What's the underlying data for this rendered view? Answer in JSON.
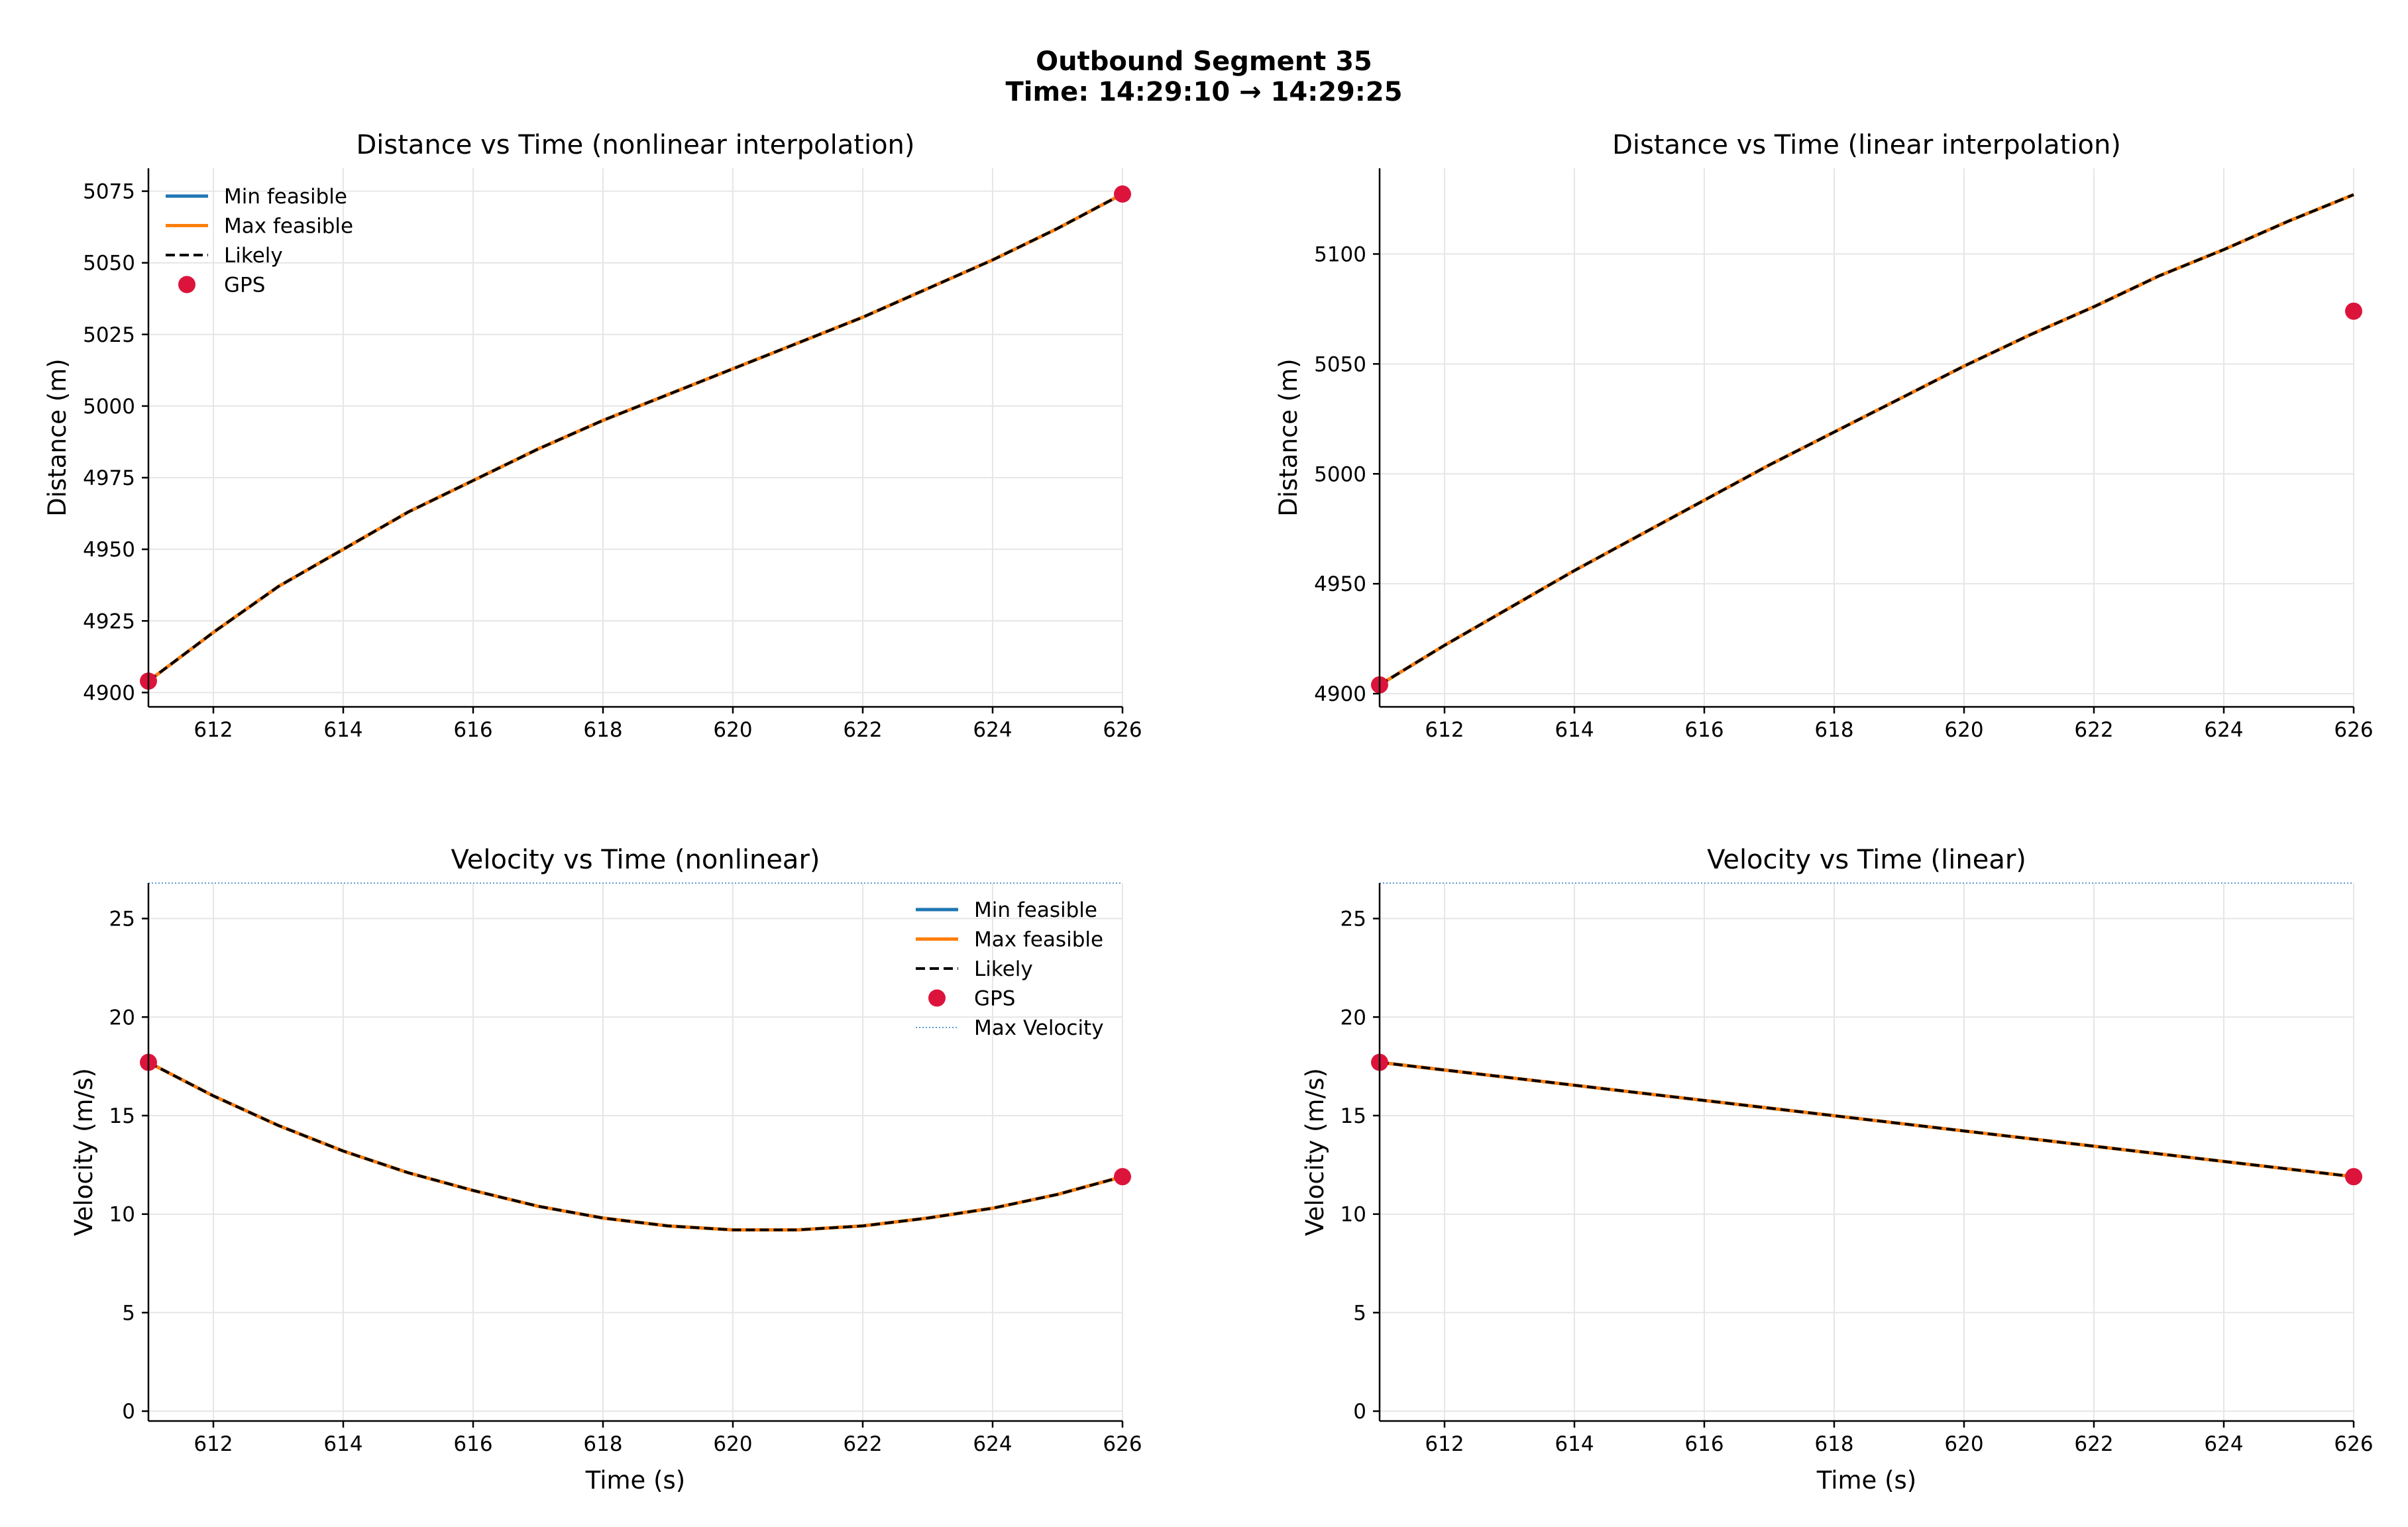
{
  "figure": {
    "title_line1": "Outbound Segment 35",
    "title_line2": "Time: 14:29:10 → 14:29:25"
  },
  "colors": {
    "min_feasible": "#1f77b4",
    "max_feasible": "#ff7f0e",
    "likely": "#000000",
    "gps": "#dc143c",
    "max_velocity": "#5b9bd5"
  },
  "chart_data": [
    {
      "id": "dist-nonlinear",
      "type": "line",
      "title": "Distance vs Time (nonlinear interpolation)",
      "xlabel": "",
      "ylabel": "Distance (m)",
      "xlim": [
        611,
        626
      ],
      "ylim": [
        4895,
        5083
      ],
      "xticks": [
        612,
        614,
        616,
        618,
        620,
        622,
        624,
        626
      ],
      "yticks": [
        4900,
        4925,
        4950,
        4975,
        5000,
        5025,
        5050,
        5075
      ],
      "grid": true,
      "legend": "upper-left",
      "x": [
        611,
        612,
        613,
        614,
        615,
        616,
        617,
        618,
        619,
        620,
        621,
        622,
        623,
        624,
        625,
        626
      ],
      "series": [
        {
          "name": "Min feasible",
          "style": "solid",
          "values": [
            4904,
            4921,
            4937,
            4950,
            4963,
            4974,
            4985,
            4995,
            5004,
            5013,
            5022,
            5031,
            5041,
            5051,
            5062,
            5074
          ]
        },
        {
          "name": "Max feasible",
          "style": "solid",
          "values": [
            4904,
            4921,
            4937,
            4950,
            4963,
            4974,
            4985,
            4995,
            5004,
            5013,
            5022,
            5031,
            5041,
            5051,
            5062,
            5074
          ]
        },
        {
          "name": "Likely",
          "style": "dashed",
          "values": [
            4904,
            4921,
            4937,
            4950,
            4963,
            4974,
            4985,
            4995,
            5004,
            5013,
            5022,
            5031,
            5041,
            5051,
            5062,
            5074
          ]
        }
      ],
      "gps": {
        "name": "GPS",
        "points": [
          [
            611,
            4904
          ],
          [
            626,
            5074
          ]
        ]
      },
      "hline": null
    },
    {
      "id": "dist-linear",
      "type": "line",
      "title": "Distance vs Time (linear interpolation)",
      "xlabel": "",
      "ylabel": "Distance (m)",
      "xlim": [
        611,
        626
      ],
      "ylim": [
        4894,
        5139
      ],
      "xticks": [
        612,
        614,
        616,
        618,
        620,
        622,
        624,
        626
      ],
      "yticks": [
        4900,
        4950,
        5000,
        5050,
        5100
      ],
      "grid": true,
      "legend": "none",
      "x": [
        611,
        612,
        613,
        614,
        615,
        616,
        617,
        618,
        619,
        620,
        621,
        622,
        623,
        624,
        625,
        626
      ],
      "series": [
        {
          "name": "Min feasible",
          "style": "solid",
          "values": [
            4904,
            4922,
            4939,
            4956,
            4972,
            4988,
            5004,
            5019,
            5034,
            5049,
            5063,
            5076,
            5090,
            5102,
            5115,
            5127
          ]
        },
        {
          "name": "Max feasible",
          "style": "solid",
          "values": [
            4904,
            4922,
            4939,
            4956,
            4972,
            4988,
            5004,
            5019,
            5034,
            5049,
            5063,
            5076,
            5090,
            5102,
            5115,
            5127
          ]
        },
        {
          "name": "Likely",
          "style": "dashed",
          "values": [
            4904,
            4922,
            4939,
            4956,
            4972,
            4988,
            5004,
            5019,
            5034,
            5049,
            5063,
            5076,
            5090,
            5102,
            5115,
            5127
          ]
        }
      ],
      "gps": {
        "name": "GPS",
        "points": [
          [
            611,
            4904
          ],
          [
            626,
            5074
          ]
        ]
      },
      "hline": null
    },
    {
      "id": "vel-nonlinear",
      "type": "line",
      "title": "Velocity vs Time (nonlinear)",
      "xlabel": "Time (s)",
      "ylabel": "Velocity (m/s)",
      "xlim": [
        611,
        626
      ],
      "ylim": [
        -0.5,
        26.8
      ],
      "xticks": [
        612,
        614,
        616,
        618,
        620,
        622,
        624,
        626
      ],
      "yticks": [
        0,
        5,
        10,
        15,
        20,
        25
      ],
      "grid": true,
      "legend": "upper-right",
      "x": [
        611,
        612,
        613,
        614,
        615,
        616,
        617,
        618,
        619,
        620,
        621,
        622,
        623,
        624,
        625,
        626
      ],
      "series": [
        {
          "name": "Min feasible",
          "style": "solid",
          "values": [
            17.7,
            16.0,
            14.5,
            13.2,
            12.1,
            11.2,
            10.4,
            9.8,
            9.4,
            9.2,
            9.2,
            9.4,
            9.8,
            10.3,
            11.0,
            11.9
          ]
        },
        {
          "name": "Max feasible",
          "style": "solid",
          "values": [
            17.7,
            16.0,
            14.5,
            13.2,
            12.1,
            11.2,
            10.4,
            9.8,
            9.4,
            9.2,
            9.2,
            9.4,
            9.8,
            10.3,
            11.0,
            11.9
          ]
        },
        {
          "name": "Likely",
          "style": "dashed",
          "values": [
            17.7,
            16.0,
            14.5,
            13.2,
            12.1,
            11.2,
            10.4,
            9.8,
            9.4,
            9.2,
            9.2,
            9.4,
            9.8,
            10.3,
            11.0,
            11.9
          ]
        }
      ],
      "gps": {
        "name": "GPS",
        "points": [
          [
            611,
            17.7
          ],
          [
            626,
            11.9
          ]
        ]
      },
      "hline": {
        "name": "Max Velocity",
        "value": 26.8
      }
    },
    {
      "id": "vel-linear",
      "type": "line",
      "title": "Velocity vs Time (linear)",
      "xlabel": "Time (s)",
      "ylabel": "Velocity (m/s)",
      "xlim": [
        611,
        626
      ],
      "ylim": [
        -0.5,
        26.8
      ],
      "xticks": [
        612,
        614,
        616,
        618,
        620,
        622,
        624,
        626
      ],
      "yticks": [
        0,
        5,
        10,
        15,
        20,
        25
      ],
      "grid": true,
      "legend": "none",
      "x": [
        611,
        626
      ],
      "series": [
        {
          "name": "Min feasible",
          "style": "solid",
          "values": [
            17.7,
            11.9
          ]
        },
        {
          "name": "Max feasible",
          "style": "solid",
          "values": [
            17.7,
            11.9
          ]
        },
        {
          "name": "Likely",
          "style": "dashed",
          "values": [
            17.7,
            11.9
          ]
        }
      ],
      "gps": {
        "name": "GPS",
        "points": [
          [
            611,
            17.7
          ],
          [
            626,
            11.9
          ]
        ]
      },
      "hline": {
        "name": "Max Velocity",
        "value": 26.8
      }
    }
  ]
}
